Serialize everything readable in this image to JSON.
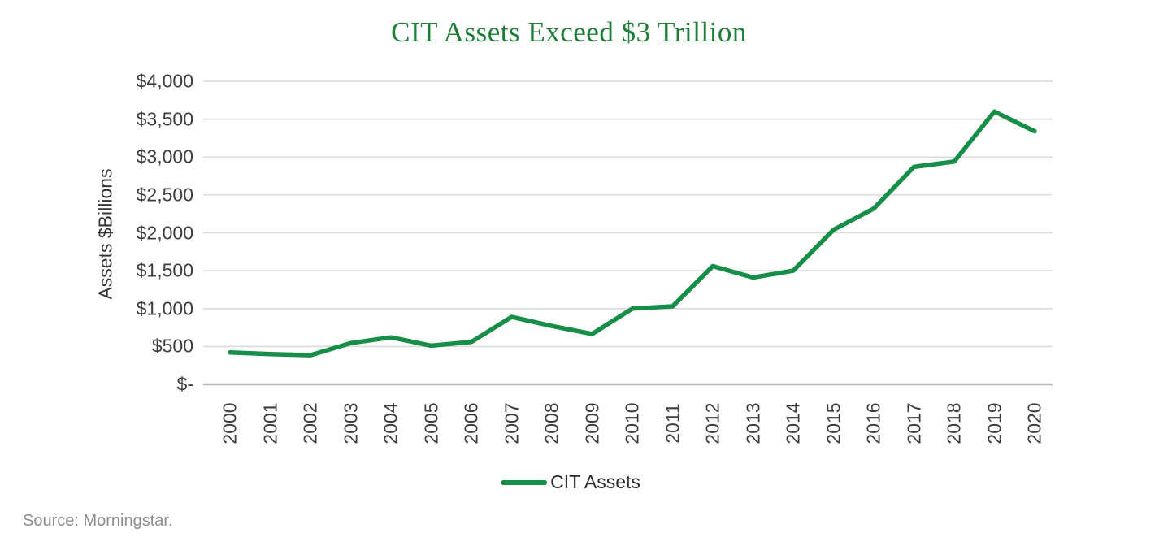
{
  "chart_data": {
    "type": "line",
    "title": "CIT Assets Exceed $3 Trillion",
    "title_color": "#1e7e38",
    "xlabel": "",
    "ylabel": "Assets $Billions",
    "categories": [
      "2000",
      "2001",
      "2002",
      "2003",
      "2004",
      "2005",
      "2006",
      "2007",
      "2008",
      "2009",
      "2010",
      "2011",
      "2012",
      "2013",
      "2014",
      "2015",
      "2016",
      "2017",
      "2018",
      "2019",
      "2020"
    ],
    "series": [
      {
        "name": "CIT Assets",
        "color": "#168e48",
        "values": [
          420,
          400,
          385,
          545,
          620,
          510,
          560,
          890,
          770,
          665,
          1000,
          1030,
          1560,
          1410,
          1500,
          2040,
          2320,
          2870,
          2940,
          3600,
          3340
        ]
      }
    ],
    "ylim": [
      0,
      4000
    ],
    "y_tick_step": 500,
    "y_tick_labels_top_to_bottom": [
      "$4,000",
      "$3,500",
      "$3,000",
      "$2,500",
      "$2,000",
      "$1,500",
      "$1,000",
      "$500",
      "$-"
    ],
    "grid": true,
    "gridline_color": "#d9d9d9",
    "axis_line_color": "#b7b7b7",
    "tick_label_color": "#3d3d3d",
    "legend_position": "bottom",
    "source": "Source: Morningstar."
  }
}
